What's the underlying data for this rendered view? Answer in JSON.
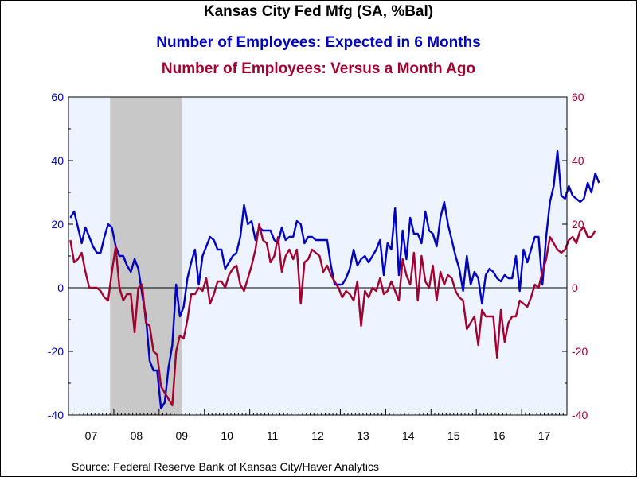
{
  "chart_data": {
    "type": "line",
    "title": "Kansas City Fed Mfg (SA, %Bal)",
    "subtitles": [
      "Number of Employees: Expected in 6 Months",
      "Number of Employees: Versus a Month Ago"
    ],
    "x_tick_labels": [
      "07",
      "08",
      "09",
      "10",
      "11",
      "12",
      "13",
      "14",
      "15",
      "16",
      "17"
    ],
    "x_range": [
      "2007-01",
      "2017-12"
    ],
    "ylim_left": [
      -40,
      60
    ],
    "ylim_right": [
      -40,
      60
    ],
    "y_ticks_left": [
      "60",
      "40",
      "20",
      "0",
      "-20",
      "-40"
    ],
    "y_ticks_right": [
      "60",
      "40",
      "20",
      "0",
      "-20",
      "-40"
    ],
    "recession_shading": [
      {
        "start": "2007-12",
        "end": "2009-06"
      }
    ],
    "zero_line": true,
    "grid": false,
    "series": [
      {
        "color": "#0000c0",
        "axis": "left",
        "start": "2007-01",
        "values": [
          22,
          24,
          19,
          14,
          19,
          16,
          13,
          11,
          11,
          16,
          20,
          19,
          13,
          10,
          10,
          7,
          5,
          9,
          6,
          -2,
          -9,
          -23,
          -26,
          -26,
          -38,
          -36,
          -25,
          -18,
          1,
          -9,
          -6,
          3,
          8,
          12,
          1,
          10,
          13,
          16,
          15,
          12,
          12,
          6,
          8,
          10,
          11,
          16,
          26,
          20,
          21,
          15,
          19,
          18,
          18,
          18,
          15,
          14,
          19,
          15,
          16,
          16,
          21,
          20,
          14,
          16,
          16,
          15,
          15,
          15,
          15,
          7,
          1,
          1,
          1,
          3,
          6,
          12,
          7,
          9,
          10,
          8,
          10,
          12,
          15,
          4,
          14,
          12,
          25,
          4,
          18,
          9,
          22,
          17,
          17,
          14,
          24,
          18,
          17,
          13,
          22,
          27,
          20,
          15,
          10,
          6,
          -1,
          10,
          1,
          5,
          3,
          -5,
          4,
          6,
          5,
          3,
          2,
          4,
          3,
          3,
          10,
          -1,
          12,
          8,
          12,
          16,
          16,
          1,
          16,
          27,
          32,
          43,
          29,
          28,
          32,
          29,
          28,
          27,
          28,
          33,
          30,
          36,
          33
        ]
      },
      {
        "color": "#a00030",
        "axis": "left",
        "start": "2007-01",
        "values": [
          15,
          8,
          9,
          11,
          5,
          0,
          0,
          0,
          -1,
          -3,
          -4,
          5,
          13,
          0,
          -4,
          -2,
          -2,
          -14,
          0,
          1,
          -11,
          -12,
          -20,
          -21,
          -31,
          -33,
          -35,
          -37,
          -20,
          -15,
          -16,
          -10,
          -2,
          -2,
          0,
          -1,
          3,
          -5,
          -2,
          2,
          2,
          0,
          4,
          6,
          7,
          1,
          -1,
          3,
          7,
          12,
          20,
          15,
          14,
          8,
          10,
          16,
          5,
          10,
          12,
          9,
          12,
          -5,
          8,
          9,
          12,
          11,
          10,
          5,
          7,
          4,
          2,
          0,
          -3,
          -1,
          -2,
          -4,
          2,
          -12,
          -1,
          -3,
          0,
          -1,
          3,
          -2,
          -1,
          2,
          -1,
          -4,
          9,
          4,
          1,
          11,
          -4,
          10,
          2,
          0,
          7,
          -4,
          5,
          1,
          4,
          3,
          -1,
          -3,
          -4,
          -13,
          -11,
          -9,
          -18,
          -7,
          -9,
          -9,
          -9,
          -22,
          -7,
          -17,
          -11,
          -9,
          -9,
          -4,
          -5,
          -6,
          -3,
          1,
          0,
          5,
          9,
          16,
          14,
          12,
          11,
          12,
          15,
          16,
          14,
          18,
          19,
          16,
          16,
          18
        ]
      }
    ]
  },
  "source": "Source:  Federal Reserve Bank of Kansas City/Haver Analytics"
}
